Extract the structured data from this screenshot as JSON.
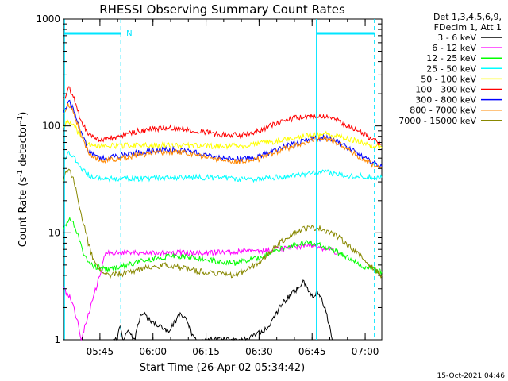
{
  "chart_data": {
    "type": "line",
    "title": "RHESSI Observing Summary Count Rates",
    "xlabel": "Start Time (26-Apr-02 05:34:42)",
    "ylabel_main": "Count Rate (s",
    "ylabel_sup1": "-1",
    "ylabel_mid": " detector",
    "ylabel_sup2": "-1",
    "ylabel_end": ")",
    "y_scale": "log",
    "ylim": [
      1,
      1000
    ],
    "xlim_minutes": [
      0,
      90
    ],
    "x_ticks": [
      {
        "label": "05:45",
        "minute": 10.3
      },
      {
        "label": "06:00",
        "minute": 25.3
      },
      {
        "label": "06:15",
        "minute": 40.3
      },
      {
        "label": "06:30",
        "minute": 55.3
      },
      {
        "label": "06:45",
        "minute": 70.3
      },
      {
        "label": "07:00",
        "minute": 85.3
      }
    ],
    "y_ticks": [
      {
        "label": "1",
        "value": 1
      },
      {
        "label": "10",
        "value": 10
      },
      {
        "label": "100",
        "value": 100
      },
      {
        "label": "1000",
        "value": 1000
      }
    ],
    "legend": {
      "placement": "right",
      "header1": "Det 1,3,4,5,6,9,",
      "header2": "FDecim 1, Att 1"
    },
    "attenuator_marker": "N",
    "series": [
      {
        "name": "3 - 6 keV",
        "color": "#000000",
        "points": [
          [
            14,
            1
          ],
          [
            15,
            1
          ],
          [
            16,
            1.3
          ],
          [
            17,
            1
          ],
          [
            18,
            1.2
          ],
          [
            20,
            1
          ],
          [
            22,
            1.8
          ],
          [
            25,
            1.5
          ],
          [
            30,
            1.2
          ],
          [
            33,
            1.8
          ],
          [
            35,
            1.5
          ],
          [
            37,
            1
          ],
          [
            40,
            1
          ],
          [
            48,
            1
          ],
          [
            52,
            1
          ],
          [
            58,
            1.3
          ],
          [
            62,
            2.2
          ],
          [
            66,
            3
          ],
          [
            68,
            3.5
          ],
          [
            70,
            2.5
          ],
          [
            72,
            2.8
          ],
          [
            74,
            2
          ],
          [
            76,
            1
          ]
        ]
      },
      {
        "name": "6 - 12 keV",
        "color": "#ff00ff",
        "points": [
          [
            0,
            3
          ],
          [
            2,
            2.5
          ],
          [
            4,
            1.5
          ],
          [
            5,
            1
          ],
          [
            12,
            6.5
          ],
          [
            20,
            6.5
          ],
          [
            30,
            6.5
          ],
          [
            40,
            6.5
          ],
          [
            50,
            6.7
          ],
          [
            55,
            6.8
          ],
          [
            60,
            7
          ],
          [
            65,
            7.3
          ],
          [
            70,
            7.5
          ],
          [
            75,
            7
          ],
          [
            78,
            6.5
          ]
        ]
      },
      {
        "name": "12 - 25 keV",
        "color": "#00ff00",
        "points": [
          [
            0,
            11
          ],
          [
            1.5,
            13.5
          ],
          [
            3,
            12
          ],
          [
            5,
            8
          ],
          [
            6,
            6
          ],
          [
            8,
            5
          ],
          [
            12,
            4.5
          ],
          [
            18,
            5
          ],
          [
            22,
            5.5
          ],
          [
            26,
            5.8
          ],
          [
            30,
            6
          ],
          [
            36,
            6
          ],
          [
            42,
            5.5
          ],
          [
            48,
            5.2
          ],
          [
            52,
            5.5
          ],
          [
            56,
            6
          ],
          [
            60,
            7
          ],
          [
            64,
            7.5
          ],
          [
            68,
            8
          ],
          [
            72,
            8
          ],
          [
            76,
            7
          ],
          [
            80,
            6
          ],
          [
            84,
            5
          ],
          [
            88,
            4.5
          ],
          [
            90,
            4.3
          ]
        ]
      },
      {
        "name": "25 - 50 keV",
        "color": "#00ffff",
        "points": [
          [
            0,
            48
          ],
          [
            1.5,
            56
          ],
          [
            3,
            50
          ],
          [
            5,
            40
          ],
          [
            7,
            35
          ],
          [
            10,
            33
          ],
          [
            15,
            32
          ],
          [
            20,
            32
          ],
          [
            30,
            33
          ],
          [
            40,
            33
          ],
          [
            50,
            32
          ],
          [
            55,
            32
          ],
          [
            60,
            33
          ],
          [
            65,
            34.5
          ],
          [
            70,
            36
          ],
          [
            74,
            37
          ],
          [
            78,
            35
          ],
          [
            84,
            34
          ],
          [
            90,
            33
          ]
        ]
      },
      {
        "name": "50 - 100 keV",
        "color": "#ffff00",
        "points": [
          [
            0,
            100
          ],
          [
            1.5,
            112
          ],
          [
            3,
            100
          ],
          [
            5,
            78
          ],
          [
            7,
            68
          ],
          [
            10,
            65
          ],
          [
            20,
            66
          ],
          [
            30,
            66
          ],
          [
            40,
            65
          ],
          [
            50,
            65
          ],
          [
            55,
            68
          ],
          [
            60,
            72
          ],
          [
            65,
            78
          ],
          [
            70,
            82
          ],
          [
            74,
            84
          ],
          [
            78,
            80
          ],
          [
            82,
            74
          ],
          [
            86,
            67
          ],
          [
            90,
            63
          ]
        ]
      },
      {
        "name": "100 - 300 keV",
        "color": "#ff0000",
        "points": [
          [
            0,
            175
          ],
          [
            1.5,
            230
          ],
          [
            3,
            180
          ],
          [
            5,
            110
          ],
          [
            7,
            85
          ],
          [
            10,
            74
          ],
          [
            15,
            78
          ],
          [
            20,
            88
          ],
          [
            25,
            94
          ],
          [
            30,
            96
          ],
          [
            35,
            94
          ],
          [
            40,
            88
          ],
          [
            45,
            83
          ],
          [
            50,
            82
          ],
          [
            55,
            90
          ],
          [
            60,
            105
          ],
          [
            65,
            118
          ],
          [
            70,
            122
          ],
          [
            74,
            125
          ],
          [
            78,
            110
          ],
          [
            82,
            95
          ],
          [
            86,
            80
          ],
          [
            90,
            68
          ]
        ]
      },
      {
        "name": "300 - 800 keV",
        "color": "#0000ff",
        "points": [
          [
            0,
            135
          ],
          [
            1.5,
            170
          ],
          [
            3,
            140
          ],
          [
            5,
            85
          ],
          [
            7,
            60
          ],
          [
            10,
            50
          ],
          [
            15,
            52
          ],
          [
            20,
            56
          ],
          [
            25,
            59
          ],
          [
            30,
            60
          ],
          [
            35,
            59
          ],
          [
            40,
            55
          ],
          [
            45,
            50
          ],
          [
            50,
            49
          ],
          [
            55,
            52
          ],
          [
            60,
            60
          ],
          [
            65,
            68
          ],
          [
            70,
            75
          ],
          [
            74,
            78
          ],
          [
            78,
            70
          ],
          [
            82,
            58
          ],
          [
            86,
            48
          ],
          [
            90,
            42
          ]
        ]
      },
      {
        "name": "800 - 7000 keV",
        "color": "#ff8800",
        "points": [
          [
            0,
            128
          ],
          [
            1.5,
            160
          ],
          [
            3,
            130
          ],
          [
            5,
            80
          ],
          [
            7,
            57
          ],
          [
            10,
            47
          ],
          [
            15,
            49
          ],
          [
            20,
            53
          ],
          [
            25,
            56
          ],
          [
            30,
            57
          ],
          [
            35,
            56
          ],
          [
            40,
            52
          ],
          [
            45,
            47
          ],
          [
            50,
            46
          ],
          [
            55,
            49
          ],
          [
            60,
            57
          ],
          [
            65,
            65
          ],
          [
            70,
            73
          ],
          [
            74,
            76
          ],
          [
            78,
            68
          ],
          [
            82,
            56
          ],
          [
            86,
            46
          ],
          [
            90,
            40
          ]
        ]
      },
      {
        "name": "7000 - 15000 keV",
        "color": "#888800",
        "points": [
          [
            0,
            32
          ],
          [
            1.5,
            40
          ],
          [
            3,
            30
          ],
          [
            5,
            15
          ],
          [
            7,
            8
          ],
          [
            9,
            5
          ],
          [
            12,
            4
          ],
          [
            18,
            4.2
          ],
          [
            24,
            4.8
          ],
          [
            30,
            5
          ],
          [
            36,
            4.5
          ],
          [
            42,
            4.2
          ],
          [
            48,
            4
          ],
          [
            52,
            4.5
          ],
          [
            56,
            5.5
          ],
          [
            60,
            7.5
          ],
          [
            64,
            9.5
          ],
          [
            68,
            11
          ],
          [
            72,
            11.2
          ],
          [
            76,
            10
          ],
          [
            80,
            8
          ],
          [
            84,
            6
          ],
          [
            88,
            4.5
          ],
          [
            90,
            4
          ]
        ]
      }
    ]
  },
  "footer_timestamp": "15-Oct-2021 04:46"
}
